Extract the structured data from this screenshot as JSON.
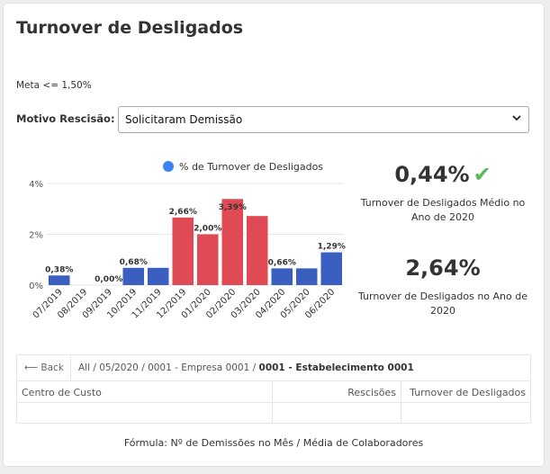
{
  "title": "Turnover de Desligados",
  "meta": "Meta <= 1,50%",
  "filter": {
    "label": "Motivo Rescisão:",
    "selected": "Solicitaram Demissão"
  },
  "chart_data": {
    "type": "bar",
    "title": "% de Turnover de Desligados",
    "legend": "% de Turnover de Desligados",
    "categories": [
      "07/2019",
      "08/2019",
      "09/2019",
      "10/2019",
      "11/2019",
      "12/2019",
      "01/2020",
      "02/2020",
      "03/2020",
      "04/2020",
      "05/2020",
      "06/2020"
    ],
    "values": [
      0.38,
      0.0,
      0.0,
      0.68,
      0.68,
      2.66,
      2.0,
      3.39,
      2.72,
      0.66,
      0.66,
      1.29
    ],
    "labels": [
      "0,38%",
      "",
      "0,00%",
      "0,68%",
      "",
      "2,66%",
      "2,00%",
      "3,39%",
      "",
      "0,66%",
      "",
      "1,29%"
    ],
    "colors": [
      "#3b5fc0",
      "#3b5fc0",
      "#3b5fc0",
      "#3b5fc0",
      "#3b5fc0",
      "#e04a55",
      "#e04a55",
      "#e04a55",
      "#e04a55",
      "#3b5fc0",
      "#3b5fc0",
      "#3b5fc0"
    ],
    "yticks": [
      "4%",
      "2%",
      "0%"
    ],
    "ylim": [
      0,
      4
    ],
    "grid": true,
    "threshold": 1.5,
    "legend_color": "#3b82f6"
  },
  "kpis": [
    {
      "value": "0,44%",
      "label": "Turnover de Desligados Médio no Ano de 2020",
      "check": "✔"
    },
    {
      "value": "2,64%",
      "label": "Turnover de Desligados no Ano de 2020"
    }
  ],
  "breadcrumb": {
    "back": "Back",
    "path": "All / 05/2020 / 0001 - Empresa 0001 /",
    "current": "0001 - Estabelecimento 0001"
  },
  "table": {
    "headers": [
      "Centro de Custo",
      "Rescisões",
      "Turnover de Desligados"
    ]
  },
  "footer": "Fórmula: Nº de Demissões no Mês / Média de Colaboradores"
}
